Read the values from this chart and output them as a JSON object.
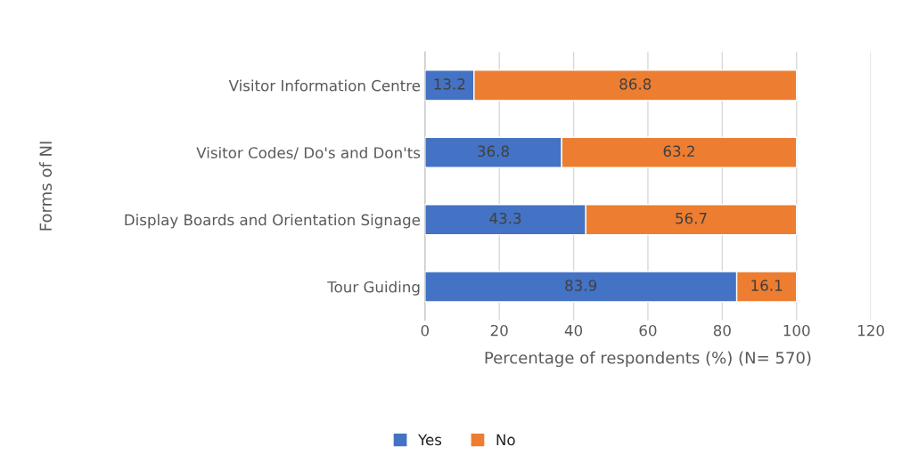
{
  "chart_data": {
    "type": "bar",
    "orientation": "horizontal",
    "stacked": true,
    "categories": [
      "Visitor Information Centre",
      "Visitor Codes/ Do's and Don'ts",
      "Display Boards and Orientation Signage",
      "Tour Guiding"
    ],
    "series": [
      {
        "name": "Yes",
        "color": "#4472c4",
        "values": [
          13.2,
          36.8,
          43.3,
          83.9
        ]
      },
      {
        "name": "No",
        "color": "#ed7d31",
        "values": [
          86.8,
          63.2,
          56.7,
          16.1
        ]
      }
    ],
    "xlim": [
      0,
      120
    ],
    "xticks": [
      0,
      20,
      40,
      60,
      80,
      100,
      120
    ],
    "xlabel": "Percentage of respondents (%) (N= 570)",
    "ylabel": "Forms of NI",
    "grid": "x",
    "legend": "bottom",
    "data_labels": true
  }
}
